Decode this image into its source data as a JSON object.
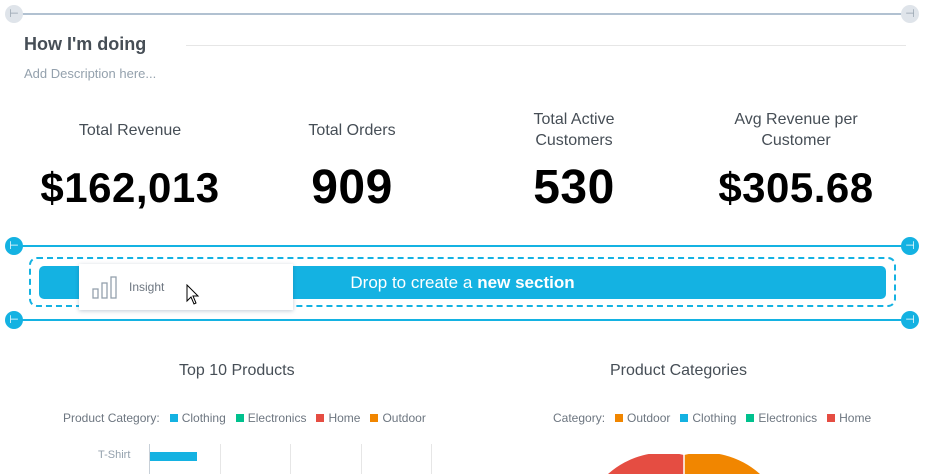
{
  "section": {
    "title": "How I'm doing",
    "description_placeholder": "Add Description here..."
  },
  "kpis": [
    {
      "label": "Total Revenue",
      "value": "$162,013"
    },
    {
      "label": "Total Orders",
      "value": "909"
    },
    {
      "label": "Total Active Customers",
      "value": "530"
    },
    {
      "label": "Avg Revenue per Customer",
      "value": "$305.68"
    }
  ],
  "dropzone": {
    "text_prefix": "Drop to create a",
    "text_bold": "new section"
  },
  "drag_item": {
    "label": "Insight",
    "icon": "bar-chart-icon"
  },
  "widgets": [
    {
      "title": "Top 10 Products",
      "legend_title": "Product Category:",
      "legend": [
        {
          "name": "Clothing",
          "color": "#14b2e2"
        },
        {
          "name": "Electronics",
          "color": "#00c18e"
        },
        {
          "name": "Home",
          "color": "#e54d42"
        },
        {
          "name": "Outdoor",
          "color": "#f18600"
        }
      ],
      "first_bar_label": "T-Shirt"
    },
    {
      "title": "Product Categories",
      "legend_title": "Category:",
      "legend": [
        {
          "name": "Outdoor",
          "color": "#f18600"
        },
        {
          "name": "Clothing",
          "color": "#14b2e2"
        },
        {
          "name": "Electronics",
          "color": "#00c18e"
        },
        {
          "name": "Home",
          "color": "#e54d42"
        }
      ]
    }
  ],
  "colors": {
    "accent": "#14b2e2",
    "clothing": "#14b2e2",
    "electronics": "#00c18e",
    "home": "#e54d42",
    "outdoor": "#f18600"
  },
  "icons": {
    "section_handle": "section-resize-handle-icon",
    "cursor": "mouse-pointer-icon"
  }
}
